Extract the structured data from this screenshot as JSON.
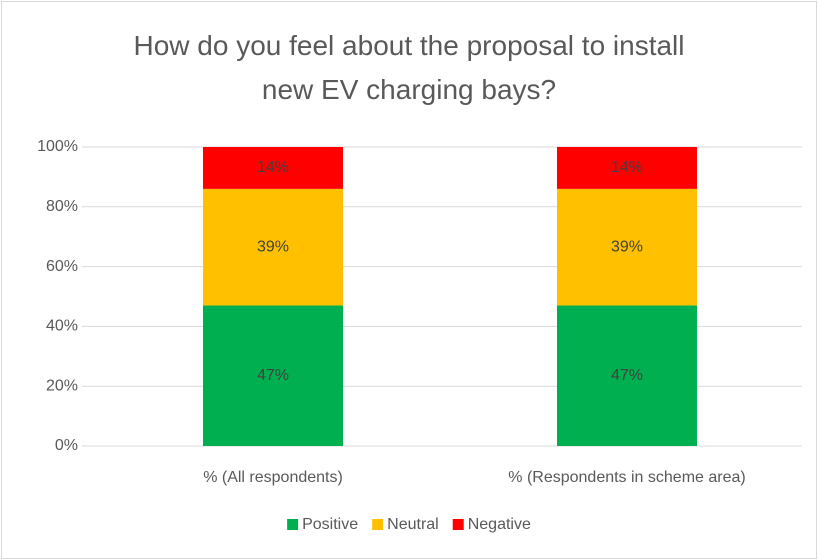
{
  "chart_data": {
    "type": "stacked_bar",
    "title": "How do you feel about the proposal to install new EV charging bays?",
    "categories": [
      "% (All respondents)",
      "% (Respondents in scheme area)"
    ],
    "series": [
      {
        "name": "Positive",
        "color": "#00b050",
        "values": [
          47,
          47
        ],
        "value_labels": [
          "47%",
          "47%"
        ]
      },
      {
        "name": "Neutral",
        "color": "#ffc000",
        "values": [
          39,
          39
        ],
        "value_labels": [
          "39%",
          "39%"
        ]
      },
      {
        "name": "Negative",
        "color": "#ff0000",
        "values": [
          14,
          14
        ],
        "value_labels": [
          "14%",
          "14%"
        ]
      }
    ],
    "ylim": [
      0,
      100
    ],
    "yticks": [
      {
        "value": 0,
        "label": "0%"
      },
      {
        "value": 20,
        "label": "20%"
      },
      {
        "value": 40,
        "label": "40%"
      },
      {
        "value": 60,
        "label": "60%"
      },
      {
        "value": 80,
        "label": "80%"
      },
      {
        "value": 100,
        "label": "100%"
      }
    ],
    "grid": true,
    "legend": "bottom"
  }
}
